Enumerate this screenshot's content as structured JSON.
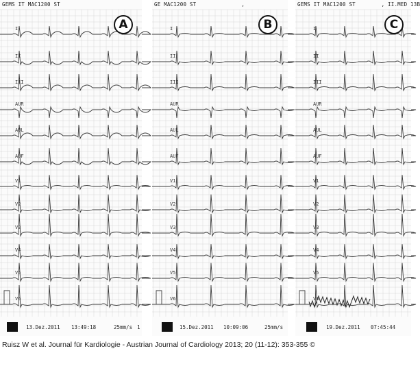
{
  "caption": "Ruisz W et al. Journal für Kardiologie - Austrian Journal of Cardiology 2013; 20 (11-12): 353-355 ©",
  "leads": [
    "I",
    "II",
    "III",
    "AUR",
    "AUL",
    "AUF",
    "V1",
    "V2",
    "V3",
    "V4",
    "V5",
    "V6"
  ],
  "panels": [
    {
      "id": "a",
      "badge": "A",
      "header": "GEMS IT MAC1200 ST",
      "date": "13.Dez.2011",
      "time": "13:49:18",
      "speed": "25mm/s",
      "trailing": "1"
    },
    {
      "id": "b",
      "badge": "B",
      "header": "GE MAC1200 ST              ,",
      "date": "15.Dez.2011",
      "time": "10:09:06",
      "speed": "25mm/s",
      "trailing": ""
    },
    {
      "id": "c",
      "badge": "C",
      "header": "GEMS IT MAC1200 ST        , II.MED 13B",
      "date": "19.Dez.2011",
      "time": "07:45:44",
      "speed": "",
      "trailing": ""
    }
  ],
  "colors": {
    "grid": "#d6d6d6",
    "trace": "#3a3a3a",
    "paper": "#fbfbfb"
  }
}
